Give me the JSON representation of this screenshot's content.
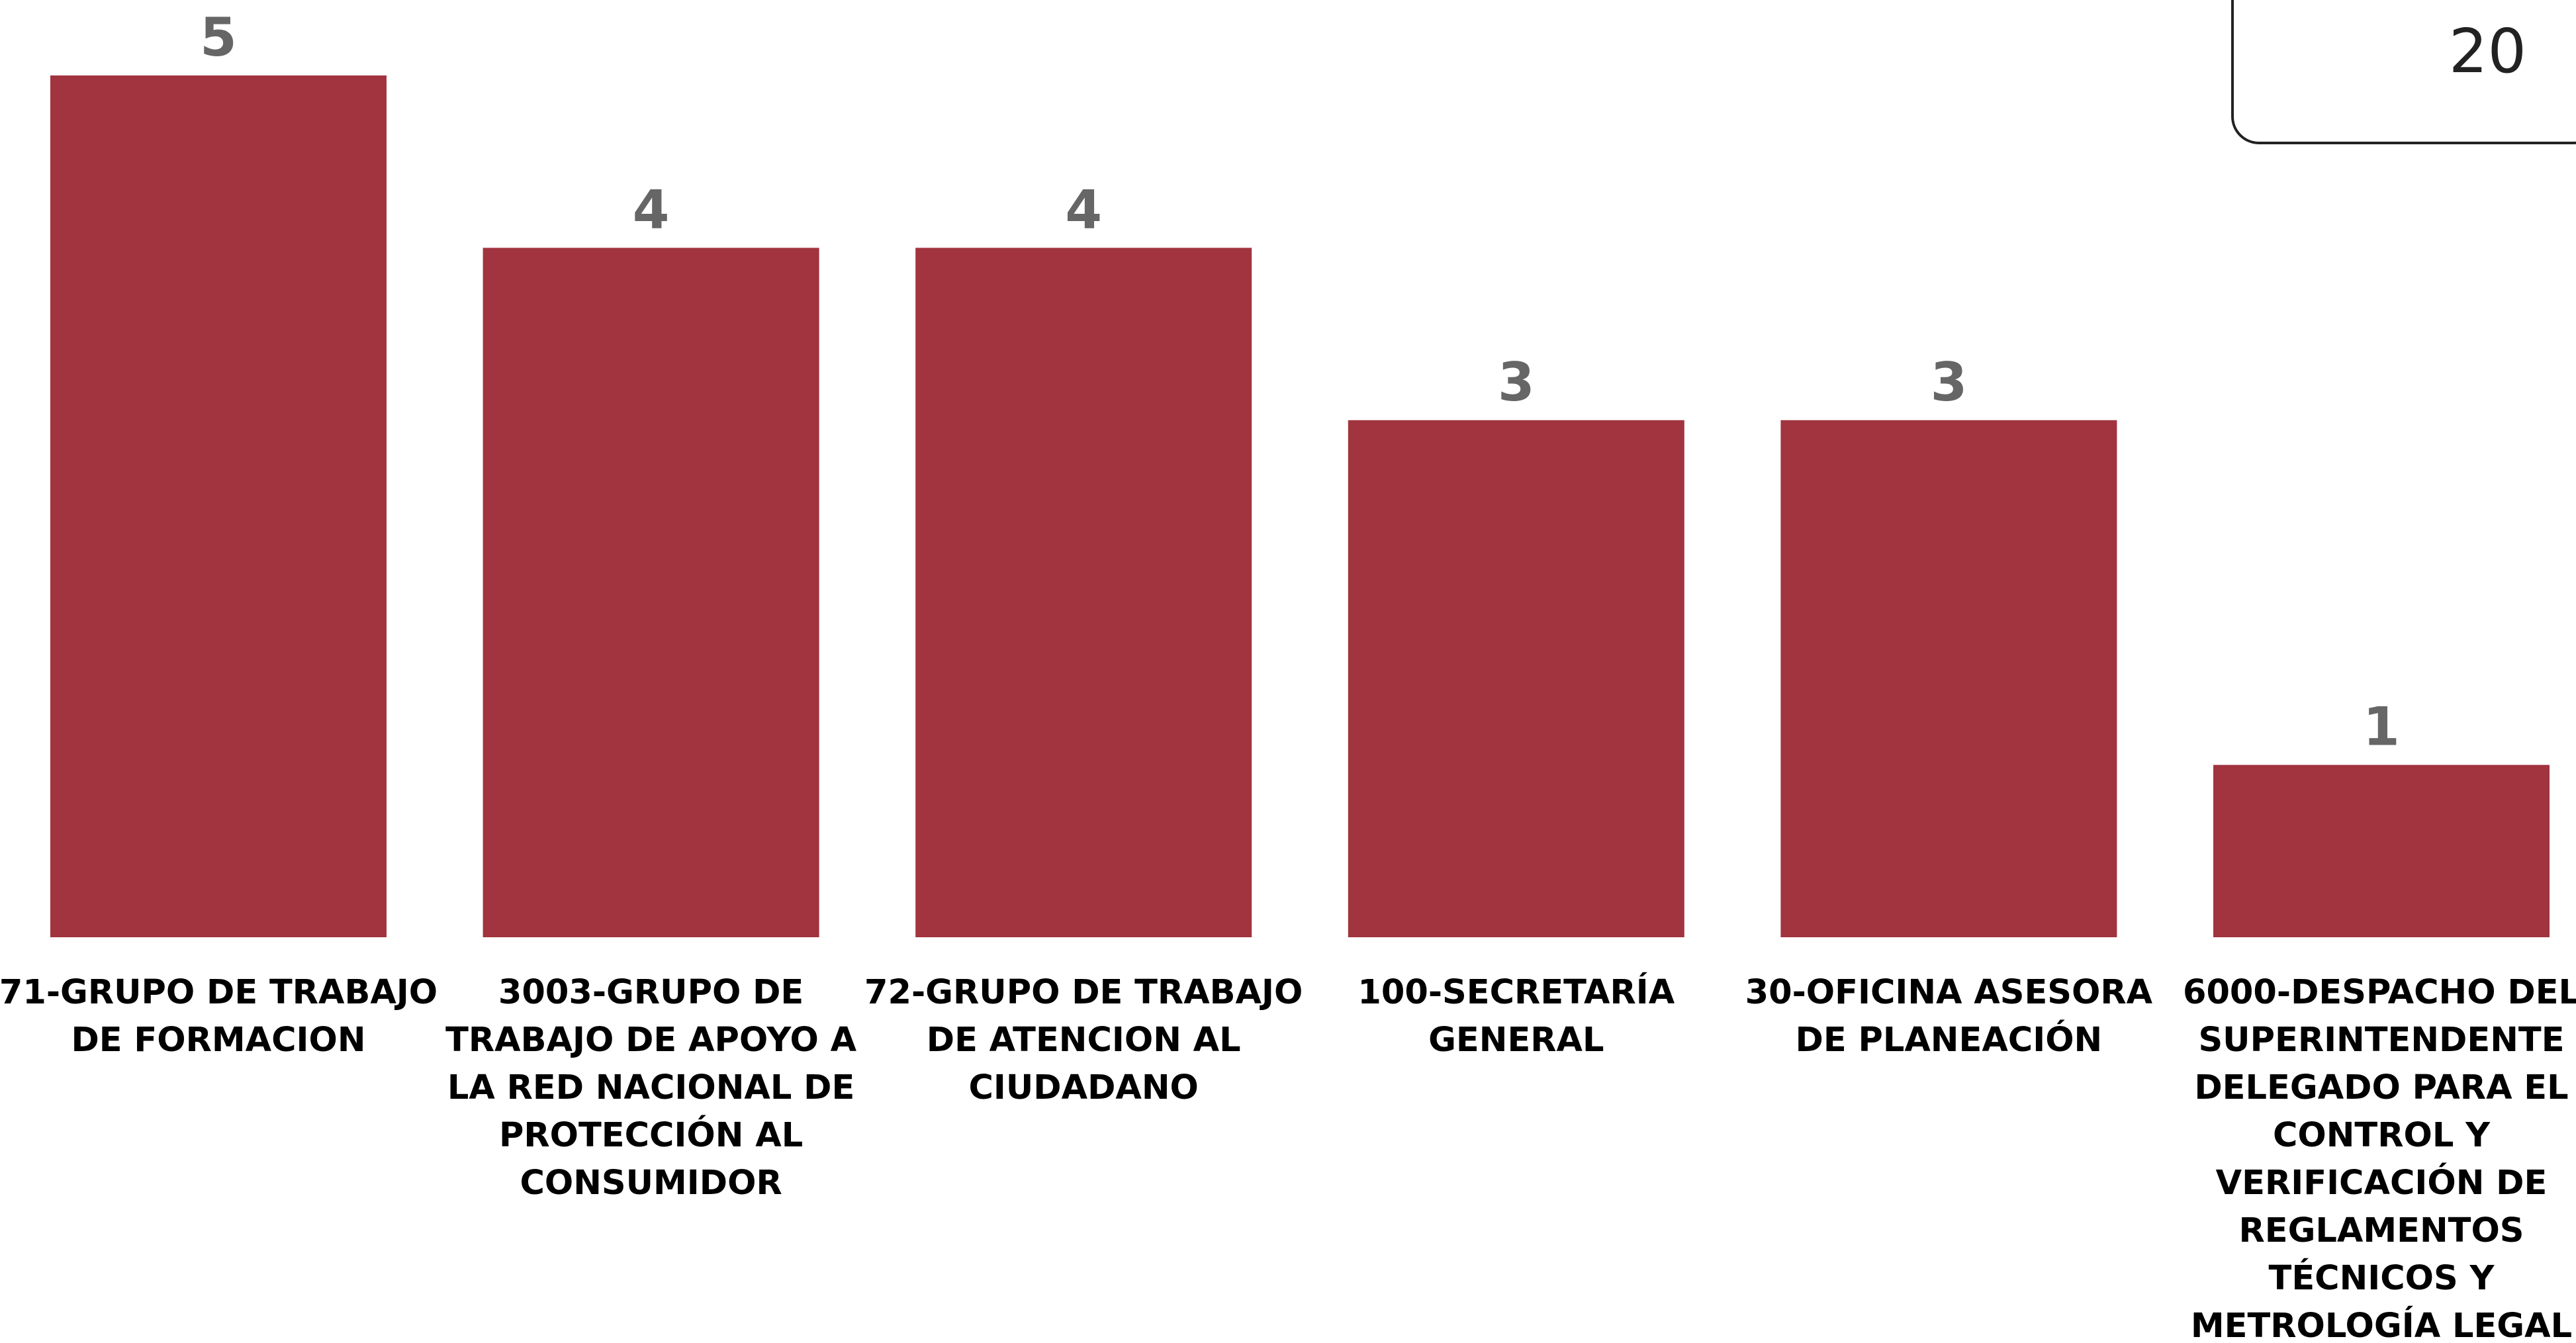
{
  "total_card": {
    "value": "20"
  },
  "colors": {
    "bar": "#a1343f",
    "value_label": "#666666",
    "category_label": "#000000"
  },
  "chart_data": {
    "type": "bar",
    "categories": [
      "71-GRUPO DE TRABAJO DE FORMACION",
      "3003-GRUPO DE TRABAJO DE APOYO A LA RED NACIONAL DE PROTECCIÓN AL CONSUMIDOR",
      "72-GRUPO DE TRABAJO DE ATENCION AL CIUDADANO",
      "100-SECRETARÍA GENERAL",
      "30-OFICINA ASESORA DE PLANEACIÓN",
      "6000-DESPACHO DEL SUPERINTENDENTE DELEGADO PARA EL CONTROL Y VERIFICACIÓN DE REGLAMENTOS TÉCNICOS Y METROLOGÍA LEGAL"
    ],
    "category_lines": [
      [
        "71-GRUPO DE TRABAJO",
        "DE FORMACION"
      ],
      [
        "3003-GRUPO DE",
        "TRABAJO DE APOYO A",
        "LA RED NACIONAL DE",
        "PROTECCIÓN AL",
        "CONSUMIDOR"
      ],
      [
        "72-GRUPO DE TRABAJO",
        "DE ATENCION AL",
        "CIUDADANO"
      ],
      [
        "100-SECRETARÍA",
        "GENERAL"
      ],
      [
        "30-OFICINA ASESORA",
        "DE PLANEACIÓN"
      ],
      [
        "6000-DESPACHO DEL",
        "SUPERINTENDENTE",
        "DELEGADO PARA EL",
        "CONTROL Y",
        "VERIFICACIÓN DE",
        "REGLAMENTOS",
        "TÉCNICOS Y",
        "METROLOGÍA LEGAL"
      ]
    ],
    "values": [
      5,
      4,
      4,
      3,
      3,
      1
    ],
    "ylim": [
      0,
      5
    ],
    "grid": false,
    "legend": "none"
  }
}
